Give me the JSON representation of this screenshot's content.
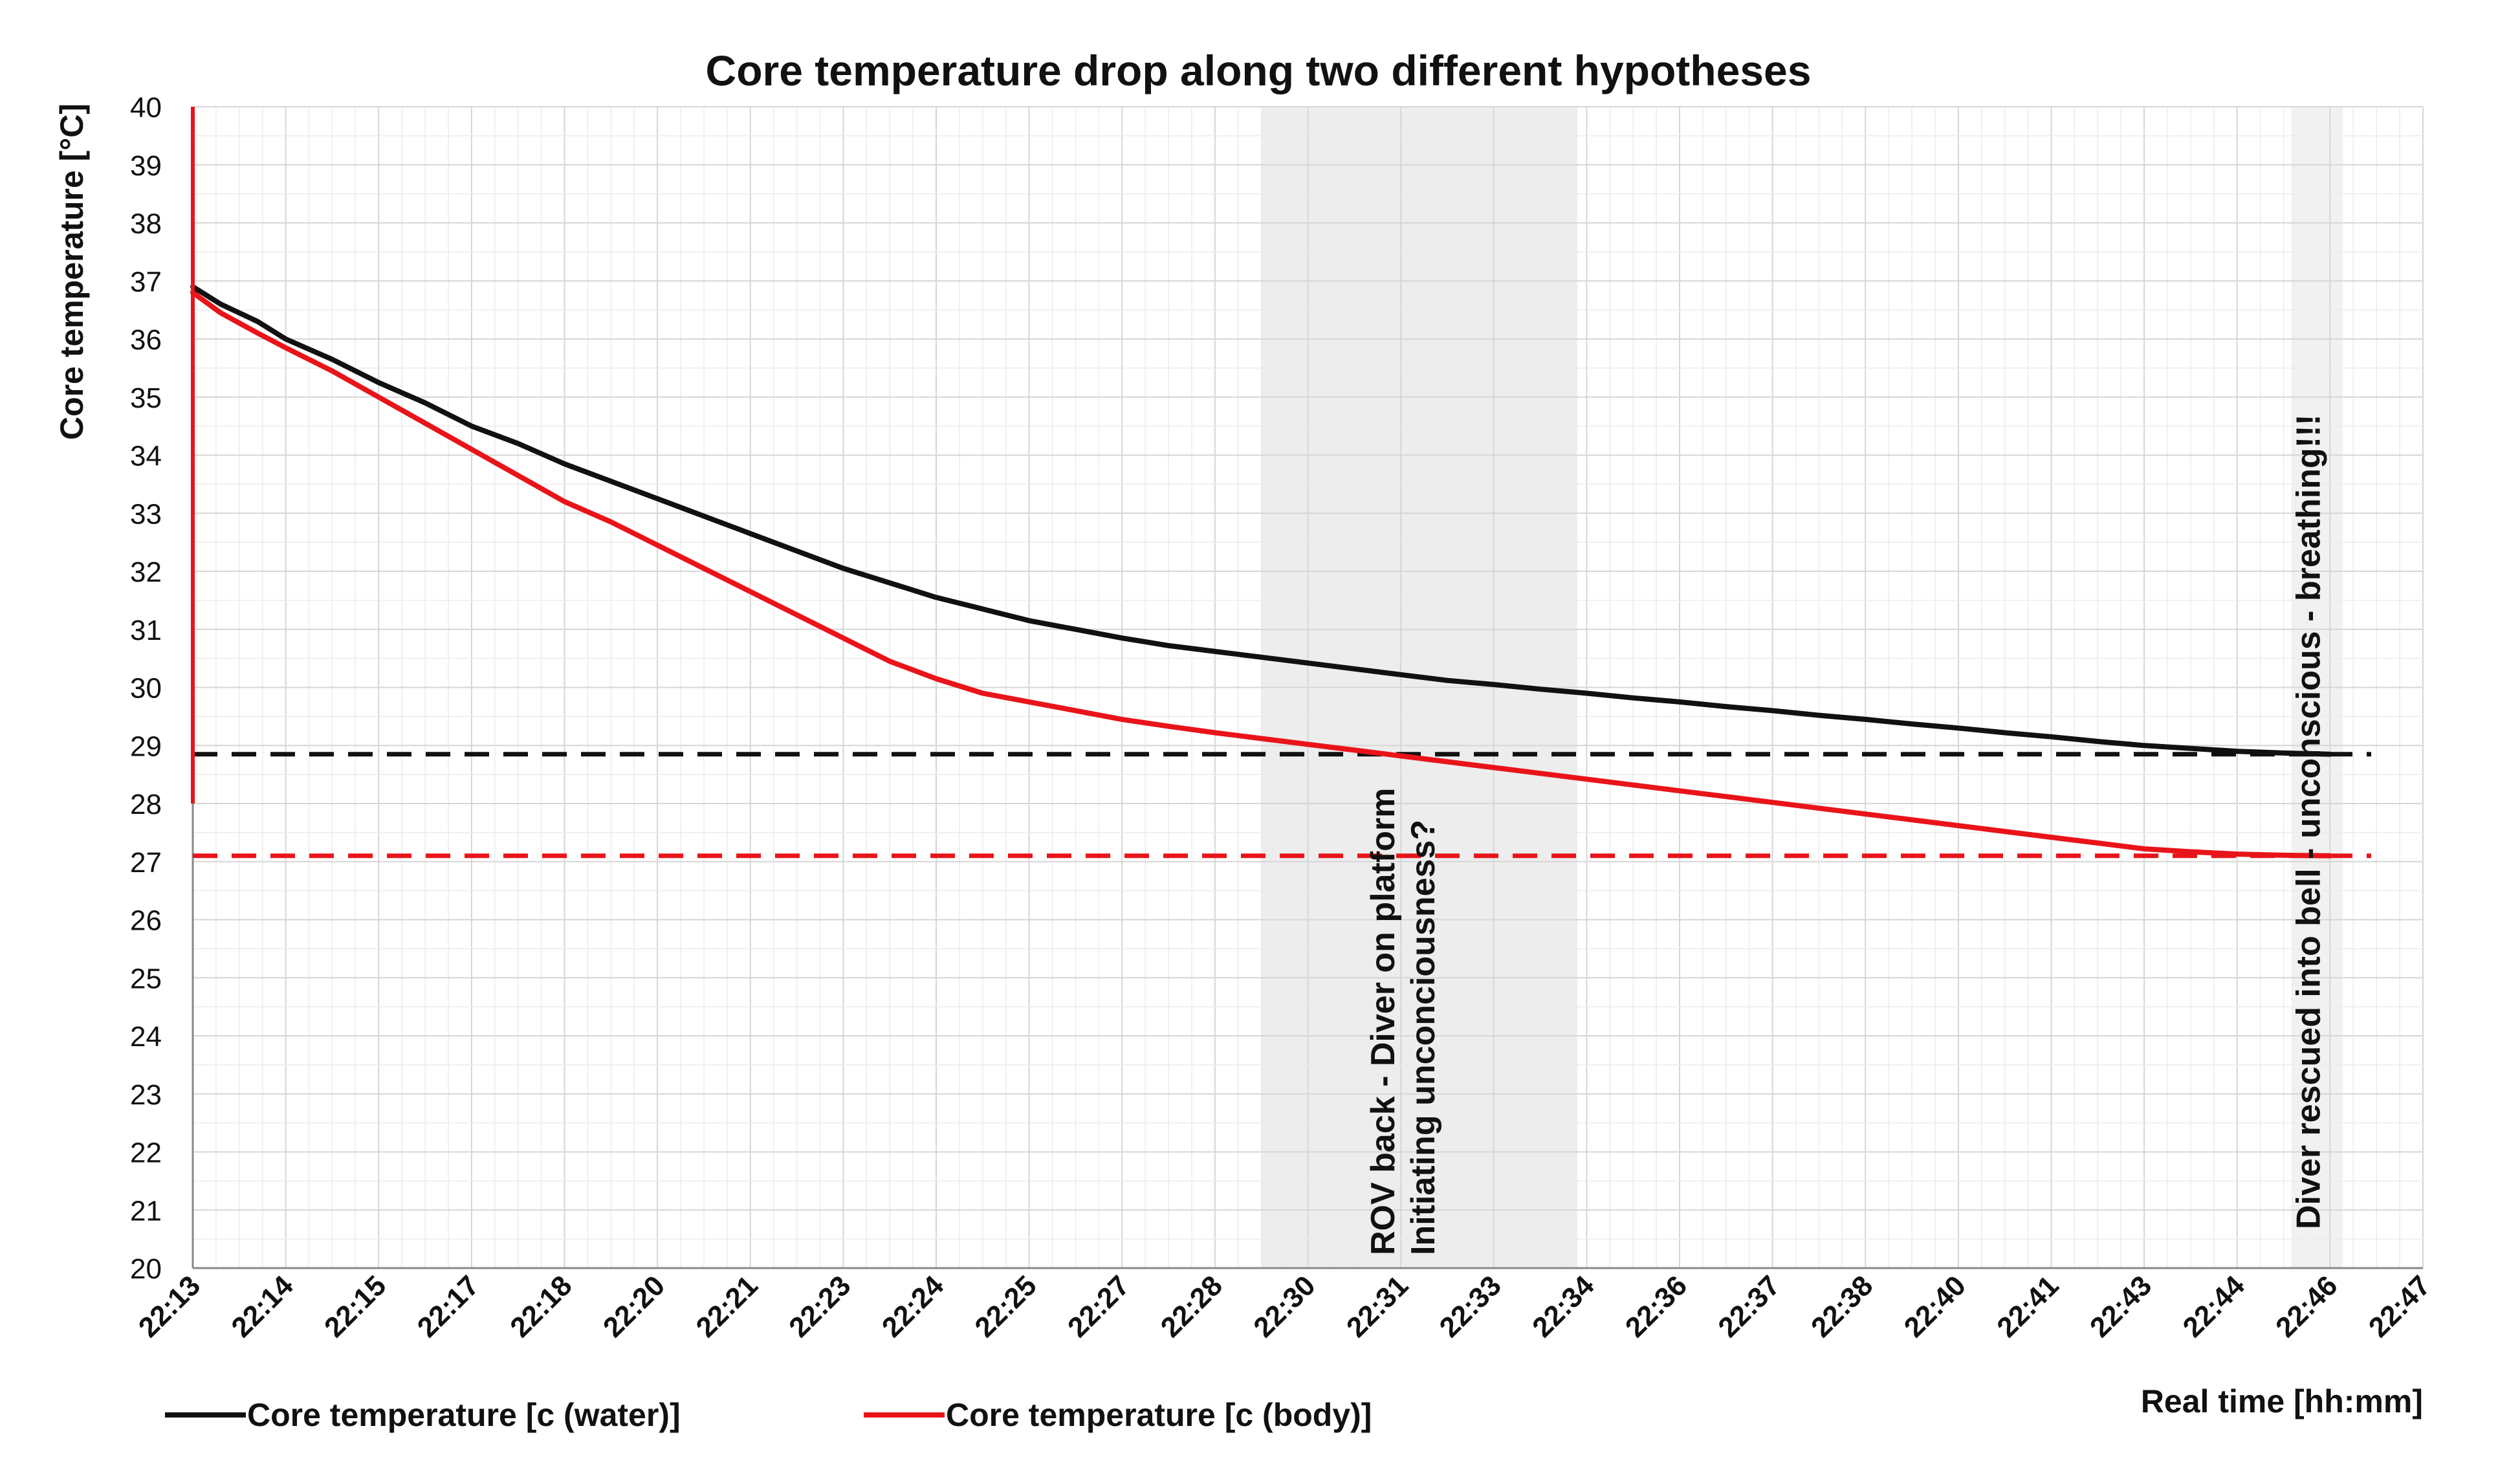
{
  "chart_data": {
    "type": "line",
    "title": "Core temperature drop along two different hypotheses",
    "xlabel": "Real time [hh:mm]",
    "ylabel": "Core temperature [°C]",
    "ylim": [
      20,
      40
    ],
    "yticks": [
      20,
      21,
      22,
      23,
      24,
      25,
      26,
      27,
      28,
      29,
      30,
      31,
      32,
      33,
      34,
      35,
      36,
      37,
      38,
      39,
      40
    ],
    "categories": [
      "22:13",
      "22:14",
      "22:15",
      "22:17",
      "22:18",
      "22:20",
      "22:21",
      "22:23",
      "22:24",
      "22:25",
      "22:27",
      "22:28",
      "22:30",
      "22:31",
      "22:33",
      "22:34",
      "22:36",
      "22:37",
      "22:38",
      "22:40",
      "22:41",
      "22:43",
      "22:44",
      "22:46",
      "22:47"
    ],
    "grid": true,
    "series": [
      {
        "name": "Core temperature  [c (water)]",
        "color": "#111111",
        "x": [
          0,
          0.3,
          0.7,
          1,
          1.5,
          2,
          2.5,
          3,
          3.5,
          4,
          4.5,
          5,
          5.5,
          6,
          6.5,
          7,
          7.5,
          8,
          8.5,
          9,
          9.5,
          10,
          10.5,
          11,
          11.5,
          12,
          12.5,
          13,
          13.5,
          14,
          14.5,
          15,
          15.5,
          16,
          16.5,
          17,
          17.5,
          18,
          18.5,
          19,
          19.5,
          20,
          20.5,
          21,
          21.5,
          22,
          22.5,
          23
        ],
        "values": [
          36.9,
          36.6,
          36.3,
          36.0,
          35.65,
          35.25,
          34.9,
          34.5,
          34.2,
          33.85,
          33.55,
          33.25,
          32.95,
          32.65,
          32.35,
          32.05,
          31.8,
          31.55,
          31.35,
          31.15,
          31.0,
          30.85,
          30.72,
          30.62,
          30.52,
          30.42,
          30.32,
          30.22,
          30.12,
          30.05,
          29.97,
          29.9,
          29.82,
          29.75,
          29.67,
          29.6,
          29.52,
          29.45,
          29.37,
          29.3,
          29.22,
          29.15,
          29.07,
          29.0,
          28.95,
          28.9,
          28.87,
          28.85
        ]
      },
      {
        "name": "Core temperature  [c (body)]",
        "color": "#e8141a",
        "x": [
          0,
          0.3,
          0.7,
          1,
          1.5,
          2,
          2.5,
          3,
          3.5,
          4,
          4.5,
          5,
          5.5,
          6,
          6.5,
          7,
          7.5,
          8,
          8.5,
          9,
          9.5,
          10,
          10.5,
          11,
          11.5,
          12,
          12.5,
          13,
          13.5,
          14,
          14.5,
          15,
          15.5,
          16,
          16.5,
          17,
          17.5,
          18,
          18.5,
          19,
          19.5,
          20,
          20.5,
          21,
          21.5,
          22,
          22.5,
          23
        ],
        "values": [
          36.8,
          36.45,
          36.1,
          35.85,
          35.45,
          35.0,
          34.55,
          34.1,
          33.65,
          33.2,
          32.85,
          32.45,
          32.05,
          31.65,
          31.25,
          30.85,
          30.45,
          30.15,
          29.9,
          29.75,
          29.6,
          29.45,
          29.33,
          29.22,
          29.12,
          29.02,
          28.92,
          28.82,
          28.72,
          28.62,
          28.52,
          28.42,
          28.32,
          28.22,
          28.12,
          28.02,
          27.92,
          27.82,
          27.72,
          27.62,
          27.52,
          27.42,
          27.32,
          27.22,
          27.17,
          27.13,
          27.11,
          27.1
        ]
      }
    ],
    "initial_spike": {
      "x": 0,
      "values": [
        40,
        28
      ]
    },
    "reference_lines": [
      {
        "y": 28.85,
        "color": "#111111",
        "style": "dashed"
      },
      {
        "y": 27.1,
        "color": "#e8141a",
        "style": "dashed"
      }
    ],
    "shaded_range": {
      "x_from": 11.5,
      "x_to": 14.9
    },
    "annotations": [
      {
        "x": 13.0,
        "y_top": 29.0,
        "lines": [
          "ROV back - Diver on platform",
          "Initiating unconciousness?"
        ]
      },
      {
        "x": 23.0,
        "y_top": 37.5,
        "lines": [
          "Diver rescued into bell - unconscious - breathing!!!"
        ]
      }
    ],
    "legend": {
      "position": "bottom-left"
    }
  }
}
